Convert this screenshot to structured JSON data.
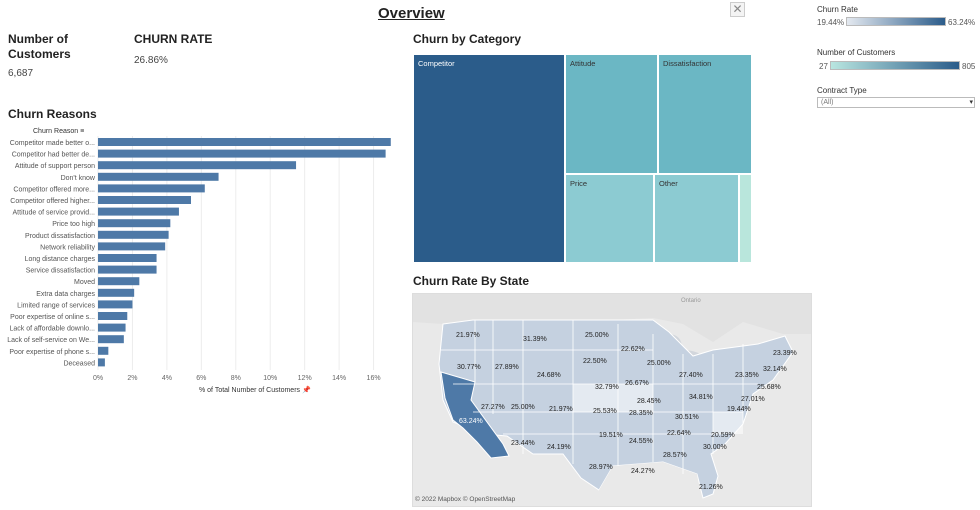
{
  "header": {
    "title": "Overview",
    "close_icon": "✕"
  },
  "kpis": {
    "customers_label_1": "Number of",
    "customers_label_2": "Customers",
    "customers_value": "6,687",
    "churn_label": "CHURN RATE",
    "churn_value": "26.86%"
  },
  "legends": {
    "churn_rate": {
      "title": "Churn Rate",
      "min": "19.44%",
      "max": "63.24%",
      "color_low": "#e4e9f0",
      "color_high": "#2b5c8a"
    },
    "customers": {
      "title": "Number of Customers",
      "min": "27",
      "max": "805",
      "color_low": "#b9e6e0",
      "color_high": "#2b5c8a"
    },
    "contract": {
      "title": "Contract Type",
      "selected": "(All)"
    }
  },
  "reasons_chart": {
    "title": "Churn Reasons",
    "column_header": "Churn Reason",
    "axis_label": "% of Total Number of Customers",
    "bar_color": "#4e79a7"
  },
  "chart_data": {
    "type": "bar",
    "orientation": "horizontal",
    "categories": [
      "Competitor made better o...",
      "Competitor had better de...",
      "Attitude of support person",
      "Don't know",
      "Competitor offered more...",
      "Competitor offered higher...",
      "Attitude of service provid...",
      "Price too high",
      "Product dissatisfaction",
      "Network reliability",
      "Long distance charges",
      "Service dissatisfaction",
      "Moved",
      "Extra data charges",
      "Limited range of services",
      "Poor expertise of online s...",
      "Lack of affordable downlo...",
      "Lack of self-service on We...",
      "Poor expertise of phone s...",
      "Deceased"
    ],
    "values": [
      17.0,
      16.7,
      11.5,
      7.0,
      6.2,
      5.4,
      4.7,
      4.2,
      4.1,
      3.9,
      3.4,
      3.4,
      2.4,
      2.1,
      2.0,
      1.7,
      1.6,
      1.5,
      0.6,
      0.4
    ],
    "x_ticks": [
      "0%",
      "2%",
      "4%",
      "6%",
      "8%",
      "10%",
      "12%",
      "14%",
      "16%"
    ],
    "xlim": [
      0,
      18
    ],
    "xlabel": "% of Total Number of Customers"
  },
  "treemap": {
    "title": "Churn by Category",
    "cells": [
      {
        "label": "Competitor",
        "color": "#2b5c8a"
      },
      {
        "label": "Attitude",
        "color": "#6bb7c4"
      },
      {
        "label": "Dissatisfaction",
        "color": "#6bb7c4"
      },
      {
        "label": "Price",
        "color": "#8ccbd2"
      },
      {
        "label": "Other",
        "color": "#8ccbd2"
      },
      {
        "label": "",
        "color": "#b9e6dc"
      }
    ]
  },
  "map": {
    "title": "Churn Rate By State",
    "attribution": "© 2022 Mapbox © OpenStreetMap",
    "region_label": "Ontario",
    "labels": [
      "21.97%",
      "31.39%",
      "25.00%",
      "22.62%",
      "30.77%",
      "27.89%",
      "22.50%",
      "25.00%",
      "23.39%",
      "24.68%",
      "32.79%",
      "26.67%",
      "27.40%",
      "23.35%",
      "25.68%",
      "27.27%",
      "25.00%",
      "21.97%",
      "25.53%",
      "28.45%",
      "34.81%",
      "27.01%",
      "63.24%",
      "28.35%",
      "30.51%",
      "19.44%",
      "19.51%",
      "22.64%",
      "20.59%",
      "23.44%",
      "24.19%",
      "24.55%",
      "30.00%",
      "28.57%",
      "32.14%",
      "28.97%",
      "24.27%",
      "21.26%"
    ]
  }
}
